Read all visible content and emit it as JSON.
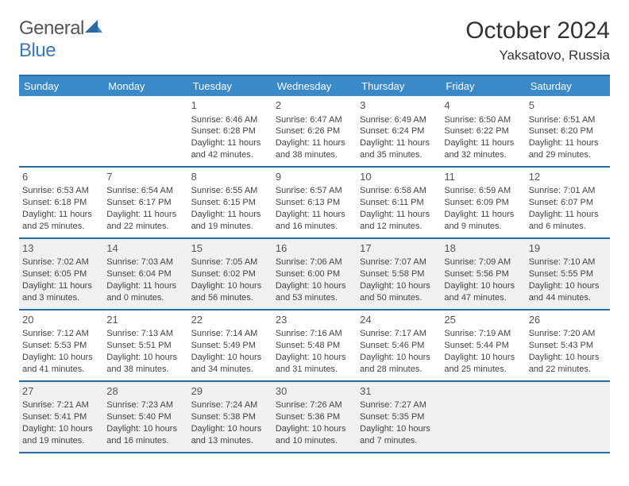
{
  "header": {
    "logo_part1": "General",
    "logo_part2": "Blue",
    "month_title": "October 2024",
    "location": "Yaksatovo, Russia"
  },
  "style": {
    "accent_color": "#3a8ac9",
    "border_color": "#2d6aa3",
    "shaded_bg": "#eef0f2",
    "background_color": "#ffffff",
    "text_color": "#444444",
    "header_text_color": "#ffffff",
    "daynum_fontsize": 13,
    "body_fontsize": 11,
    "title_fontsize": 30,
    "location_fontsize": 17
  },
  "day_names": [
    "Sunday",
    "Monday",
    "Tuesday",
    "Wednesday",
    "Thursday",
    "Friday",
    "Saturday"
  ],
  "shaded_rows": [
    2,
    4
  ],
  "weeks": [
    [
      {
        "day": "",
        "lines": []
      },
      {
        "day": "",
        "lines": []
      },
      {
        "day": "1",
        "lines": [
          "Sunrise: 6:46 AM",
          "Sunset: 6:28 PM",
          "Daylight: 11 hours and 42 minutes."
        ]
      },
      {
        "day": "2",
        "lines": [
          "Sunrise: 6:47 AM",
          "Sunset: 6:26 PM",
          "Daylight: 11 hours and 38 minutes."
        ]
      },
      {
        "day": "3",
        "lines": [
          "Sunrise: 6:49 AM",
          "Sunset: 6:24 PM",
          "Daylight: 11 hours and 35 minutes."
        ]
      },
      {
        "day": "4",
        "lines": [
          "Sunrise: 6:50 AM",
          "Sunset: 6:22 PM",
          "Daylight: 11 hours and 32 minutes."
        ]
      },
      {
        "day": "5",
        "lines": [
          "Sunrise: 6:51 AM",
          "Sunset: 6:20 PM",
          "Daylight: 11 hours and 29 minutes."
        ]
      }
    ],
    [
      {
        "day": "6",
        "lines": [
          "Sunrise: 6:53 AM",
          "Sunset: 6:18 PM",
          "Daylight: 11 hours and 25 minutes."
        ]
      },
      {
        "day": "7",
        "lines": [
          "Sunrise: 6:54 AM",
          "Sunset: 6:17 PM",
          "Daylight: 11 hours and 22 minutes."
        ]
      },
      {
        "day": "8",
        "lines": [
          "Sunrise: 6:55 AM",
          "Sunset: 6:15 PM",
          "Daylight: 11 hours and 19 minutes."
        ]
      },
      {
        "day": "9",
        "lines": [
          "Sunrise: 6:57 AM",
          "Sunset: 6:13 PM",
          "Daylight: 11 hours and 16 minutes."
        ]
      },
      {
        "day": "10",
        "lines": [
          "Sunrise: 6:58 AM",
          "Sunset: 6:11 PM",
          "Daylight: 11 hours and 12 minutes."
        ]
      },
      {
        "day": "11",
        "lines": [
          "Sunrise: 6:59 AM",
          "Sunset: 6:09 PM",
          "Daylight: 11 hours and 9 minutes."
        ]
      },
      {
        "day": "12",
        "lines": [
          "Sunrise: 7:01 AM",
          "Sunset: 6:07 PM",
          "Daylight: 11 hours and 6 minutes."
        ]
      }
    ],
    [
      {
        "day": "13",
        "lines": [
          "Sunrise: 7:02 AM",
          "Sunset: 6:05 PM",
          "Daylight: 11 hours and 3 minutes."
        ]
      },
      {
        "day": "14",
        "lines": [
          "Sunrise: 7:03 AM",
          "Sunset: 6:04 PM",
          "Daylight: 11 hours and 0 minutes."
        ]
      },
      {
        "day": "15",
        "lines": [
          "Sunrise: 7:05 AM",
          "Sunset: 6:02 PM",
          "Daylight: 10 hours and 56 minutes."
        ]
      },
      {
        "day": "16",
        "lines": [
          "Sunrise: 7:06 AM",
          "Sunset: 6:00 PM",
          "Daylight: 10 hours and 53 minutes."
        ]
      },
      {
        "day": "17",
        "lines": [
          "Sunrise: 7:07 AM",
          "Sunset: 5:58 PM",
          "Daylight: 10 hours and 50 minutes."
        ]
      },
      {
        "day": "18",
        "lines": [
          "Sunrise: 7:09 AM",
          "Sunset: 5:56 PM",
          "Daylight: 10 hours and 47 minutes."
        ]
      },
      {
        "day": "19",
        "lines": [
          "Sunrise: 7:10 AM",
          "Sunset: 5:55 PM",
          "Daylight: 10 hours and 44 minutes."
        ]
      }
    ],
    [
      {
        "day": "20",
        "lines": [
          "Sunrise: 7:12 AM",
          "Sunset: 5:53 PM",
          "Daylight: 10 hours and 41 minutes."
        ]
      },
      {
        "day": "21",
        "lines": [
          "Sunrise: 7:13 AM",
          "Sunset: 5:51 PM",
          "Daylight: 10 hours and 38 minutes."
        ]
      },
      {
        "day": "22",
        "lines": [
          "Sunrise: 7:14 AM",
          "Sunset: 5:49 PM",
          "Daylight: 10 hours and 34 minutes."
        ]
      },
      {
        "day": "23",
        "lines": [
          "Sunrise: 7:16 AM",
          "Sunset: 5:48 PM",
          "Daylight: 10 hours and 31 minutes."
        ]
      },
      {
        "day": "24",
        "lines": [
          "Sunrise: 7:17 AM",
          "Sunset: 5:46 PM",
          "Daylight: 10 hours and 28 minutes."
        ]
      },
      {
        "day": "25",
        "lines": [
          "Sunrise: 7:19 AM",
          "Sunset: 5:44 PM",
          "Daylight: 10 hours and 25 minutes."
        ]
      },
      {
        "day": "26",
        "lines": [
          "Sunrise: 7:20 AM",
          "Sunset: 5:43 PM",
          "Daylight: 10 hours and 22 minutes."
        ]
      }
    ],
    [
      {
        "day": "27",
        "lines": [
          "Sunrise: 7:21 AM",
          "Sunset: 5:41 PM",
          "Daylight: 10 hours and 19 minutes."
        ]
      },
      {
        "day": "28",
        "lines": [
          "Sunrise: 7:23 AM",
          "Sunset: 5:40 PM",
          "Daylight: 10 hours and 16 minutes."
        ]
      },
      {
        "day": "29",
        "lines": [
          "Sunrise: 7:24 AM",
          "Sunset: 5:38 PM",
          "Daylight: 10 hours and 13 minutes."
        ]
      },
      {
        "day": "30",
        "lines": [
          "Sunrise: 7:26 AM",
          "Sunset: 5:36 PM",
          "Daylight: 10 hours and 10 minutes."
        ]
      },
      {
        "day": "31",
        "lines": [
          "Sunrise: 7:27 AM",
          "Sunset: 5:35 PM",
          "Daylight: 10 hours and 7 minutes."
        ]
      },
      {
        "day": "",
        "lines": []
      },
      {
        "day": "",
        "lines": []
      }
    ]
  ]
}
